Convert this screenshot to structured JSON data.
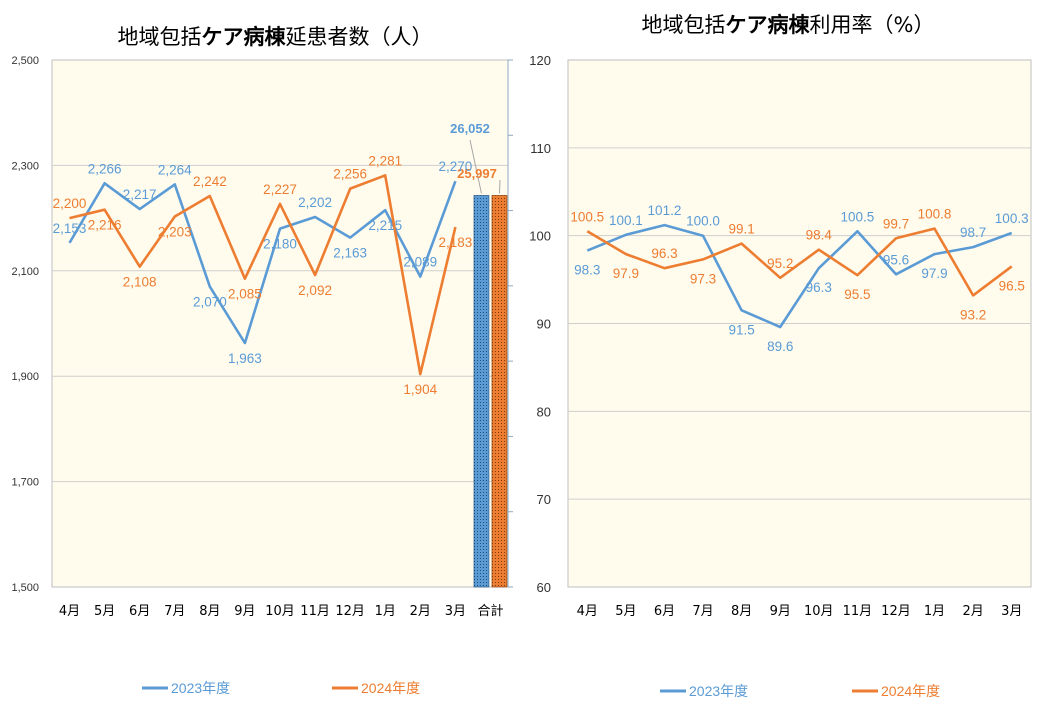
{
  "colors": {
    "series2023": "#5B9BD5",
    "series2024": "#ED7D31",
    "plot_bg": "#FFFCEE",
    "grid": "#CFCFCF"
  },
  "chart_data": [
    {
      "id": "patients",
      "type": "line",
      "title_parts": [
        {
          "text": "地域包括",
          "bold": false
        },
        {
          "text": "ケア病棟",
          "bold": true
        },
        {
          "text": "延患者数（人）",
          "bold": false
        }
      ],
      "categories": [
        "4月",
        "5月",
        "6月",
        "7月",
        "8月",
        "9月",
        "10月",
        "11月",
        "12月",
        "1月",
        "2月",
        "3月"
      ],
      "series": [
        {
          "name": "2023年度",
          "values": [
            2153,
            2266,
            2217,
            2264,
            2070,
            1963,
            2180,
            2202,
            2163,
            2215,
            2089,
            2270
          ],
          "labels": [
            "2,153",
            "2,266",
            "2,217",
            "2,264",
            "2,070",
            "1,963",
            "2,180",
            "2,202",
            "2,163",
            "2,215",
            "2,089",
            "2,270"
          ]
        },
        {
          "name": "2024年度",
          "values": [
            2200,
            2216,
            2108,
            2203,
            2242,
            2085,
            2227,
            2092,
            2256,
            2281,
            1904,
            2183
          ],
          "labels": [
            "2,200",
            "2,216",
            "2,108",
            "2,203",
            "2,242",
            "2,085",
            "2,227",
            "2,092",
            "2,256",
            "2,281",
            "1,904",
            "2,183"
          ]
        }
      ],
      "ylim": [
        1500,
        2500
      ],
      "yticks": [
        "1,500",
        "1,700",
        "1,900",
        "2,100",
        "2,300",
        "2,500"
      ],
      "total_category": "合計",
      "totals": [
        {
          "name": "2023年度",
          "value": 26052,
          "label": "26,052"
        },
        {
          "name": "2024年度",
          "value": 25997,
          "label": "25,997"
        }
      ],
      "secondary_axis": {
        "ticks_minor": true
      }
    },
    {
      "id": "utilization",
      "type": "line",
      "title_parts": [
        {
          "text": "地域包括",
          "bold": false
        },
        {
          "text": "ケア病棟",
          "bold": true
        },
        {
          "text": "利用率（%）",
          "bold": false
        }
      ],
      "categories": [
        "4月",
        "5月",
        "6月",
        "7月",
        "8月",
        "9月",
        "10月",
        "11月",
        "12月",
        "1月",
        "2月",
        "3月"
      ],
      "series": [
        {
          "name": "2023年度",
          "values": [
            98.3,
            100.1,
            101.2,
            100.0,
            91.5,
            89.6,
            96.3,
            100.5,
            95.6,
            97.9,
            98.7,
            100.3
          ],
          "labels": [
            "98.3",
            "100.1",
            "101.2",
            "100.0",
            "91.5",
            "89.6",
            "96.3",
            "100.5",
            "95.6",
            "97.9",
            "98.7",
            "100.3"
          ]
        },
        {
          "name": "2024年度",
          "values": [
            100.5,
            97.9,
            96.3,
            97.3,
            99.1,
            95.2,
            98.4,
            95.5,
            99.7,
            100.8,
            93.2,
            96.5
          ],
          "labels": [
            "100.5",
            "97.9",
            "96.3",
            "97.3",
            "99.1",
            "95.2",
            "98.4",
            "95.5",
            "99.7",
            "100.8",
            "93.2",
            "96.5"
          ]
        }
      ],
      "ylim": [
        60,
        120
      ],
      "yticks": [
        "60",
        "70",
        "80",
        "90",
        "100",
        "110",
        "120"
      ]
    }
  ],
  "legend": {
    "items": [
      "2023年度",
      "2024年度"
    ]
  }
}
